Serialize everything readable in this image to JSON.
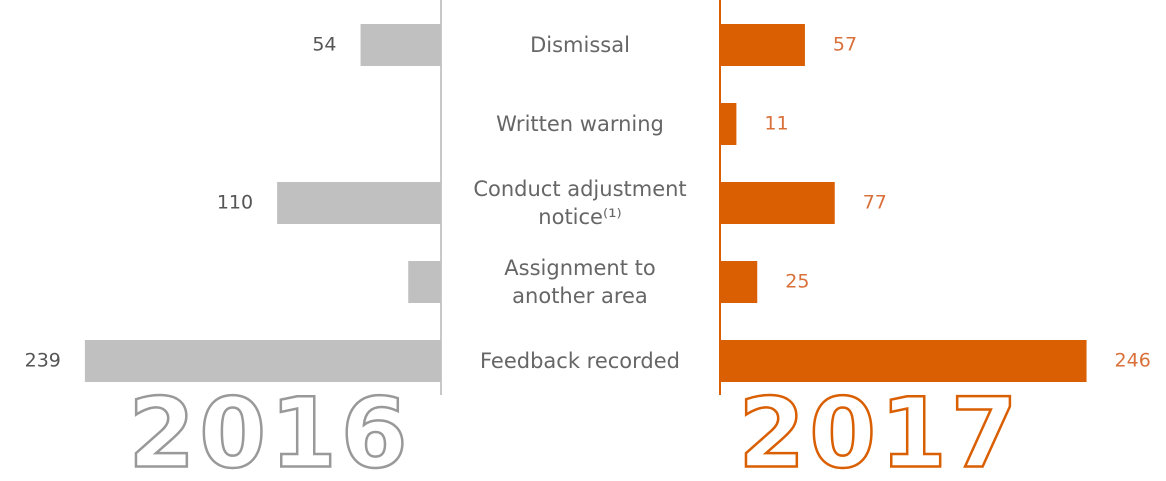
{
  "chart_data": {
    "type": "butterfly",
    "categories": [
      "Dismissal",
      "Written warning",
      "Conduct adjustment\nnotice⁽¹⁾",
      "Assignment to\nanother area",
      "Feedback recorded"
    ],
    "series": [
      {
        "name": "2016",
        "color": "#c0c0c0",
        "label_color": "#555555",
        "values": [
          54,
          null,
          110,
          22,
          239
        ],
        "value_labels": [
          "54",
          null,
          "110",
          null,
          "239"
        ]
      },
      {
        "name": "2017",
        "color": "#d95f02",
        "label_color": "#d9703a",
        "values": [
          57,
          11,
          77,
          25,
          246
        ]
      }
    ]
  }
}
